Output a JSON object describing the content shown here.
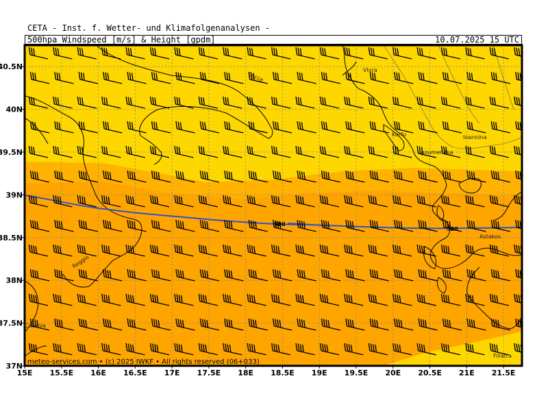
{
  "header": {
    "line1": "CETA - Inst. f. Wetter- und Klimafolgenanalysen -",
    "line2_left": "500hpa Windspeed [m/s] & Height [gpdm]",
    "line2_right": "10.07.2025 15 UTC"
  },
  "map": {
    "lon_range": [
      15,
      21.75
    ],
    "lat_range": [
      37,
      40.75
    ],
    "lon_ticks": [
      "15E",
      "15.5E",
      "16E",
      "16.5E",
      "17E",
      "17.5E",
      "18E",
      "18.5E",
      "19E",
      "19.5E",
      "20E",
      "20.5E",
      "21E",
      "21.5E"
    ],
    "lat_ticks": [
      "37N",
      "37.5N",
      "38N",
      "38.5N",
      "39N",
      "39.5N",
      "40N",
      "40.5N"
    ],
    "contour_label": "580",
    "places": [
      {
        "name": "Lecce",
        "lon": 17.97,
        "lat": 40.6
      },
      {
        "name": "Vlora",
        "lon": 19.5,
        "lat": 40.7
      },
      {
        "name": "Korfu",
        "lon": 19.9,
        "lat": 39.7
      },
      {
        "name": "Ioannina",
        "lon": 20.8,
        "lat": 39.7
      },
      {
        "name": "Igoumenitsa",
        "lon": 20.3,
        "lat": 39.5
      },
      {
        "name": "Reggio",
        "lon": 15.7,
        "lat": 38.2
      },
      {
        "name": "Astakos",
        "lon": 21.1,
        "lat": 38.5
      },
      {
        "name": "Catania",
        "lon": 15.05,
        "lat": 37.5
      },
      {
        "name": "Filiatra",
        "lon": 21.6,
        "lat": 37.1
      }
    ],
    "copyright": "meteo-services.com • (c) 2025 IWKF • All rights reserved (06+033)",
    "colors": {
      "light_yellow": "#fee98c",
      "yellow": "#ffd700",
      "orange_light": "#ffb300",
      "orange": "#ffa500",
      "contour": "#3050c8"
    }
  }
}
